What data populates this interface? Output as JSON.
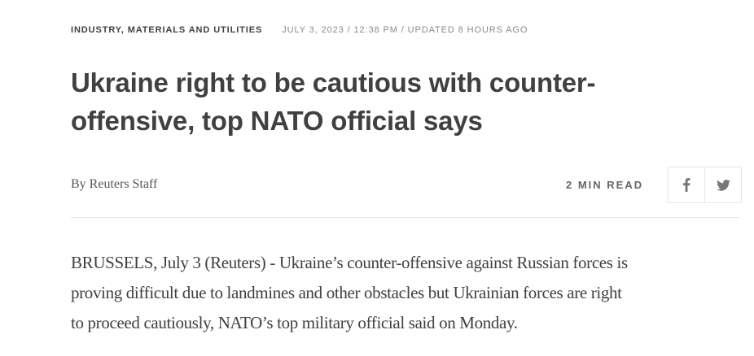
{
  "meta": {
    "category": "INDUSTRY, MATERIALS AND UTILITIES",
    "dateline": "JULY 3, 2023 / 12:38 PM / UPDATED 8 HOURS AGO"
  },
  "headline": "Ukraine right to be cautious with counter-offensive, top NATO official says",
  "byline": "By Reuters Staff",
  "read_time": "2 MIN READ",
  "share": {
    "facebook_icon": "f",
    "twitter_icon": "twitter-bird"
  },
  "body_lines": [
    "BRUSSELS, July 3 (Reuters) - Ukraine’s counter-offensive against Russian forces is",
    "proving difficult due to landmines and other obstacles but Ukrainian forces are right",
    "to proceed cautiously, NATO’s top military official said on Monday."
  ]
}
